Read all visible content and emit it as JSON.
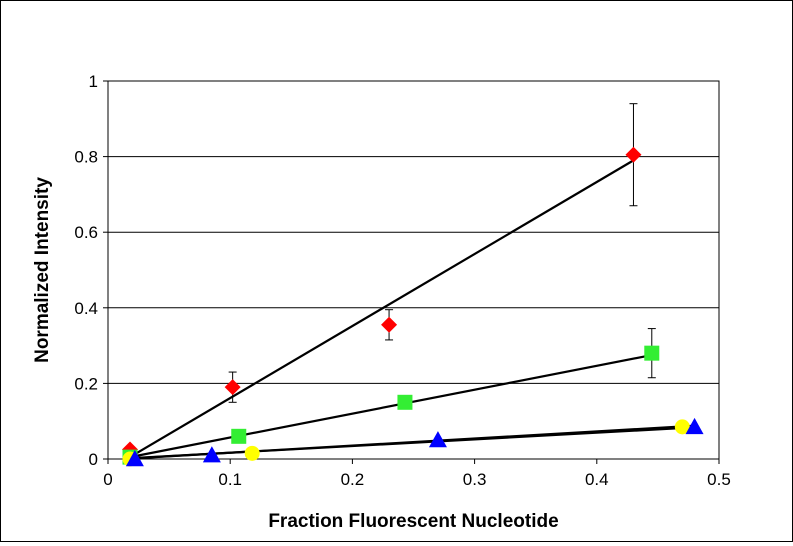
{
  "chart_data": {
    "type": "scatter",
    "title": "",
    "xlabel": "Fraction Fluorescent Nucleotide",
    "ylabel": "Normalized Intensity",
    "xlim": [
      0,
      0.5
    ],
    "ylim": [
      0,
      1
    ],
    "xticks": [
      "0",
      "0.1",
      "0.2",
      "0.3",
      "0.4",
      "0.5"
    ],
    "yticks": [
      "0",
      "0.2",
      "0.4",
      "0.6",
      "0.8",
      "1"
    ],
    "grid": "horizontal major gridlines",
    "legend": "none",
    "series": [
      {
        "marker": "diamond",
        "color": "#ff0000",
        "x": [
          0.018,
          0.102,
          0.23,
          0.43
        ],
        "y": [
          0.025,
          0.19,
          0.355,
          0.805
        ],
        "error": [
          0,
          0.04,
          0.04,
          0.135
        ],
        "fit": {
          "x": [
            0.018,
            0.43
          ],
          "y": [
            0.005,
            0.79
          ]
        }
      },
      {
        "marker": "square",
        "color": "#33ee33",
        "x": [
          0.018,
          0.107,
          0.243,
          0.445
        ],
        "y": [
          0.005,
          0.06,
          0.15,
          0.28
        ],
        "error": [
          0,
          0,
          0,
          0.065
        ],
        "fit": {
          "x": [
            0.018,
            0.445
          ],
          "y": [
            0.005,
            0.275
          ]
        }
      },
      {
        "marker": "circle",
        "color": "#ffff00",
        "x": [
          0.018,
          0.118,
          0.47
        ],
        "y": [
          0.0,
          0.015,
          0.085
        ],
        "error": [
          0,
          0,
          0
        ],
        "fit": {
          "x": [
            0.018,
            0.47
          ],
          "y": [
            0.002,
            0.082
          ]
        }
      },
      {
        "marker": "triangle",
        "color": "#0000ff",
        "x": [
          0.022,
          0.085,
          0.27,
          0.48
        ],
        "y": [
          0.0,
          0.01,
          0.05,
          0.085
        ],
        "error": [
          0,
          0,
          0,
          0
        ],
        "fit": {
          "x": [
            0.022,
            0.48
          ],
          "y": [
            0.002,
            0.088
          ]
        }
      }
    ]
  }
}
